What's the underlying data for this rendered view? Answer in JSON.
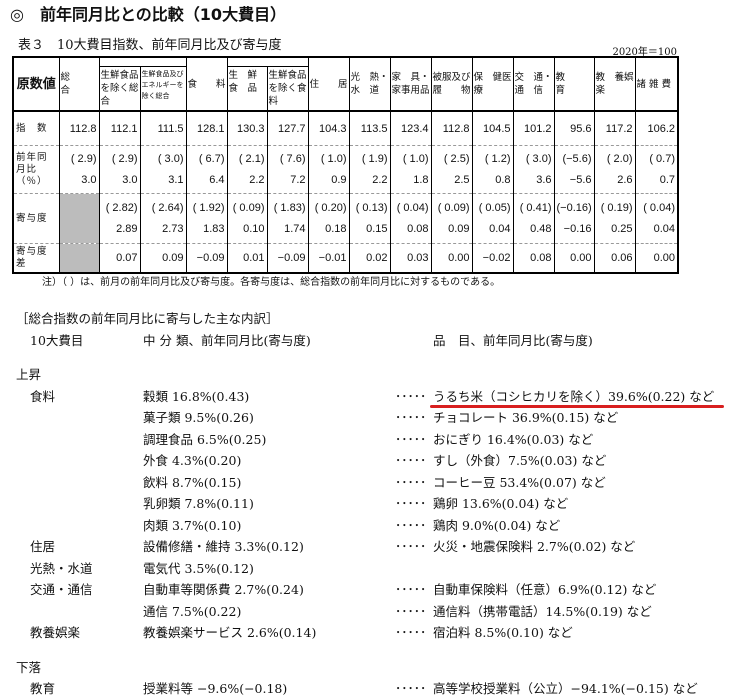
{
  "title": "◎　前年同月比との比較（10大費目）",
  "caption": "表３　10大費目指数、前年同月比及び寄与度",
  "base": "2020年＝100",
  "table": {
    "corner": "原数値",
    "headers": [
      "総　　合",
      "生鮮食品を除く総　合",
      "生鮮食品及びエネルギーを除く総合",
      "食　　料",
      "生　鮮食　品",
      "生鮮食品を除く食　料",
      "住　　居",
      "光　熱・水　道",
      "家　具・家事用品",
      "被服及び履　　物",
      "保　健医　療",
      "交　通・通　信",
      "教　　育",
      "教　養娯　楽",
      "諸 雑 費"
    ],
    "row_labels": {
      "index": "指　数",
      "yoy": "前年同月比（％）",
      "contrib": "寄与度",
      "contrib_diff": "寄与度差"
    },
    "index": [
      "112.8",
      "112.1",
      "111.5",
      "128.1",
      "130.3",
      "127.7",
      "104.3",
      "113.5",
      "123.4",
      "112.8",
      "104.5",
      "101.2",
      "95.6",
      "117.2",
      "106.2"
    ],
    "yoy_prev": [
      "( 2.9)",
      "( 2.9)",
      "( 3.0)",
      "( 6.7)",
      "( 2.1)",
      "( 7.6)",
      "( 1.0)",
      "( 1.9)",
      "( 1.0)",
      "( 2.5)",
      "( 1.2)",
      "( 3.0)",
      "(−5.6)",
      "( 2.0)",
      "( 0.7)"
    ],
    "yoy": [
      "3.0",
      "3.0",
      "3.1",
      "6.4",
      "2.2",
      "7.2",
      "0.9",
      "2.2",
      "1.8",
      "2.5",
      "0.8",
      "3.6",
      "−5.6",
      "2.6",
      "0.7"
    ],
    "contrib_prev": [
      "",
      "( 2.82)",
      "( 2.64)",
      "( 1.92)",
      "( 0.09)",
      "( 1.83)",
      "( 0.20)",
      "( 0.13)",
      "( 0.04)",
      "( 0.09)",
      "( 0.05)",
      "( 0.41)",
      "(−0.16)",
      "( 0.19)",
      "( 0.04)"
    ],
    "contrib": [
      "",
      "2.89",
      "2.73",
      "1.83",
      "0.10",
      "1.74",
      "0.18",
      "0.15",
      "0.08",
      "0.09",
      "0.04",
      "0.48",
      "−0.16",
      "0.25",
      "0.04"
    ],
    "contrib_diff": [
      "",
      "0.07",
      "0.09",
      "−0.09",
      "0.01",
      "−0.09",
      "−0.01",
      "0.02",
      "0.03",
      "0.00",
      "−0.02",
      "0.08",
      "0.00",
      "0.06",
      "0.00"
    ]
  },
  "note": "注）（ ）は、前月の前年同月比及び寄与度。各寄与度は、総合指数の前年同月比に対するものである。",
  "breakdown": {
    "heading": "［総合指数の前年同月比に寄与した主な内訳］",
    "col1": "10大費目",
    "col2": "中 分 類、前年同月比(寄与度)",
    "col3": "品　目、前年同月比(寄与度)",
    "up": "上昇",
    "down": "下落",
    "dots": "･････",
    "rows": [
      {
        "cat": "食料",
        "mid": "穀類 16.8%(0.43)",
        "item": "うるち米（コシヒカリを除く）39.6%(0.22) など",
        "highlight": true
      },
      {
        "cat": "",
        "mid": "菓子類 9.5%(0.26)",
        "item": "チョコレート 36.9%(0.15) など"
      },
      {
        "cat": "",
        "mid": "調理食品 6.5%(0.25)",
        "item": "おにぎり 16.4%(0.03) など"
      },
      {
        "cat": "",
        "mid": "外食 4.3%(0.20)",
        "item": "すし（外食）7.5%(0.03) など"
      },
      {
        "cat": "",
        "mid": "飲料 8.7%(0.15)",
        "item": "コーヒー豆 53.4%(0.07) など"
      },
      {
        "cat": "",
        "mid": "乳卵類 7.8%(0.11)",
        "item": "鶏卵 13.6%(0.04) など"
      },
      {
        "cat": "",
        "mid": "肉類 3.7%(0.10)",
        "item": "鶏肉 9.0%(0.04) など"
      },
      {
        "cat": "住居",
        "mid": "設備修繕・維持 3.3%(0.12)",
        "item": "火災・地震保険料 2.7%(0.02) など"
      },
      {
        "cat": "光熱・水道",
        "mid": "電気代 3.5%(0.12)",
        "item": ""
      },
      {
        "cat": "交通・通信",
        "mid": "自動車等関係費 2.7%(0.24)",
        "item": "自動車保険料（任意）6.9%(0.12) など"
      },
      {
        "cat": "",
        "mid": "通信 7.5%(0.22)",
        "item": "通信料（携帯電話）14.5%(0.19) など"
      },
      {
        "cat": "教養娯楽",
        "mid": "教養娯楽サービス 2.6%(0.14)",
        "item": "宿泊料 8.5%(0.10) など"
      }
    ],
    "down_rows": [
      {
        "cat": "教育",
        "mid": "授業料等 −9.6%(−0.18)",
        "item": "高等学校授業料（公立）−94.1%(−0.15) など"
      }
    ],
    "highlight_color": "#d81f1f"
  }
}
